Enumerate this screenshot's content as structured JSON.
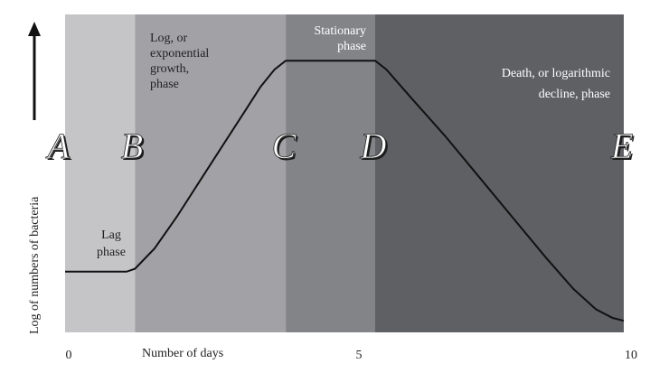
{
  "chart_data": {
    "type": "line",
    "xlabel": "Number of days",
    "ylabel": "Log of numbers of bacteria",
    "xlim": [
      0,
      10
    ],
    "x_ticks": [
      "0",
      "5",
      "10"
    ],
    "x_tick_values": [
      0,
      5,
      10
    ],
    "grid": false,
    "phases": [
      {
        "name": "lag",
        "lines": [
          "Lag",
          "phase"
        ],
        "x_start": 0,
        "x_end": 1.25,
        "color": "#c5c5c8"
      },
      {
        "name": "log",
        "lines": [
          "Log, or",
          "exponential",
          "growth,",
          "phase"
        ],
        "x_start": 1.25,
        "x_end": 3.95,
        "color": "#a2a2a6"
      },
      {
        "name": "stationary",
        "lines": [
          "Stationary",
          "phase"
        ],
        "x_start": 3.95,
        "x_end": 5.55,
        "color": "#838488"
      },
      {
        "name": "death",
        "lines": [
          "Death, or logarithmic",
          "decline, phase"
        ],
        "x_start": 5.55,
        "x_end": 10,
        "color": "#5f6064"
      }
    ],
    "points": [
      {
        "label": "A",
        "x": 0
      },
      {
        "label": "B",
        "x": 1.25
      },
      {
        "label": "C",
        "x": 3.95
      },
      {
        "label": "D",
        "x": 5.55
      },
      {
        "label": "E",
        "x": 10
      }
    ],
    "series": [
      {
        "x": [
          0,
          1.1,
          1.25,
          1.6,
          2.0,
          2.4,
          2.8,
          3.2,
          3.5,
          3.75,
          3.95,
          5.55,
          5.75,
          6.2,
          6.8,
          7.4,
          8.0,
          8.6,
          9.1,
          9.5,
          9.8,
          10
        ],
        "y": [
          0.21,
          0.21,
          0.22,
          0.29,
          0.4,
          0.52,
          0.64,
          0.76,
          0.85,
          0.91,
          0.94,
          0.94,
          0.91,
          0.81,
          0.68,
          0.54,
          0.4,
          0.26,
          0.15,
          0.08,
          0.05,
          0.04
        ]
      }
    ],
    "ylim": [
      0,
      1.1
    ],
    "arrow": "up"
  }
}
